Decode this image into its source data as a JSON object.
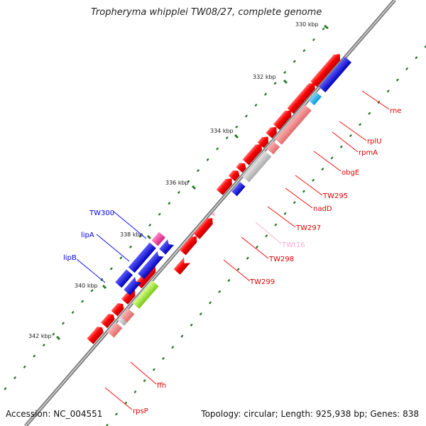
{
  "title": "Tropheryma whipplei TW08/27, complete genome",
  "footer": {
    "accession": "Accession: NC_004551",
    "summary": "Topology: circular; Length: 925,938 bp; Genes: 838"
  },
  "ticks": [
    "330 kbp",
    "332 kbp",
    "334 kbp",
    "336 kbp",
    "338 kbp",
    "340 kbp",
    "342 kbp"
  ],
  "gene_labels": {
    "rne": "rne",
    "rplU": "rplU",
    "rpmA": "rpmA",
    "obgE": "obgE",
    "TW295": "TW295",
    "nadD": "nadD",
    "TW297": "TW297",
    "TWt16": "TWt16",
    "TW298": "TW298",
    "TW299": "TW299",
    "TW300": "TW300",
    "lipA": "lipA",
    "lipB": "lipB",
    "ffh": "ffh",
    "rpsP": "rpsP"
  },
  "colors": {
    "red_gene": "#ff0000",
    "pink_gene": "#f08080",
    "grey_gene": "#c8c8c8",
    "blue_gene": "#0000ff",
    "cyan_gene": "#1eb4f0",
    "magenta_gene": "#ff3ca0",
    "lime_gene": "#a0f028",
    "trna_pink": "#ffaad2",
    "backbone": "#7a7a7a",
    "tick_green": "#2a7a2a"
  }
}
